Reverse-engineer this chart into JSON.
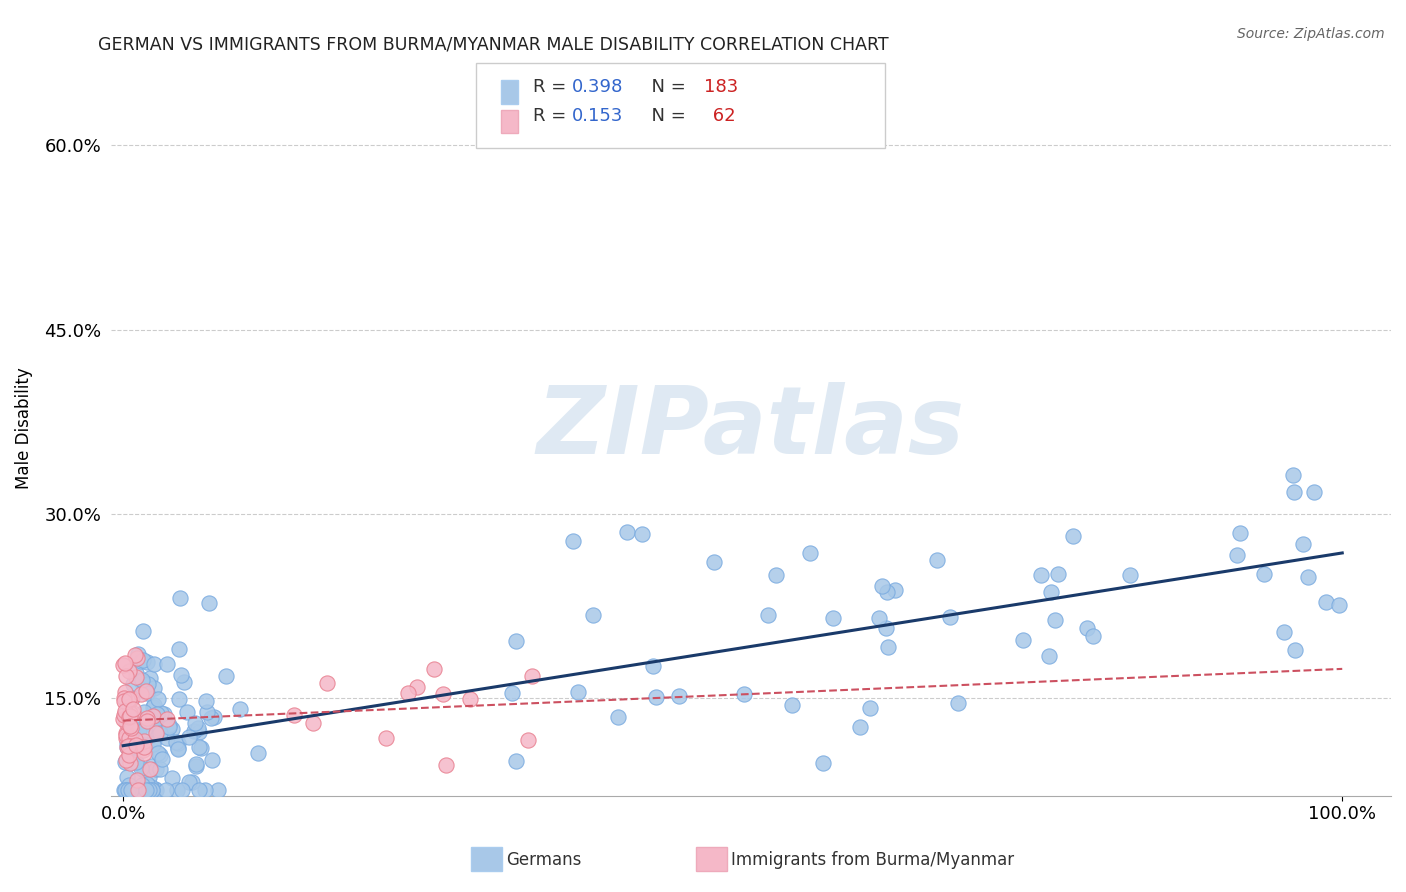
{
  "title": "GERMAN VS IMMIGRANTS FROM BURMA/MYANMAR MALE DISABILITY CORRELATION CHART",
  "source": "Source: ZipAtlas.com",
  "ylabel": "Male Disability",
  "ytick_labels": [
    "15.0%",
    "30.0%",
    "45.0%",
    "60.0%"
  ],
  "ytick_values": [
    0.15,
    0.3,
    0.45,
    0.6
  ],
  "xtick_labels": [
    "0.0%",
    "100.0%"
  ],
  "xtick_values": [
    0.0,
    1.0
  ],
  "xlim": [
    -0.01,
    1.04
  ],
  "ylim": [
    0.07,
    0.67
  ],
  "blue_scatter_color": "#a8c8e8",
  "blue_scatter_edge": "#7aabe0",
  "pink_scatter_color": "#f5b8c8",
  "pink_scatter_edge": "#e88090",
  "blue_line_color": "#1a3a6a",
  "pink_line_color": "#cc5060",
  "legend_blue_face": "#a8c8e8",
  "legend_pink_face": "#f5b8c8",
  "legend_R_blue_text": "0.398",
  "legend_N_blue_text": "183",
  "legend_R_pink_text": "0.153",
  "legend_N_pink_text": "62",
  "watermark_text": "ZIPatlas",
  "watermark_color": "#c5d8ea",
  "background_color": "#ffffff",
  "grid_color": "#cccccc",
  "bottom_legend_blue_label": "Germans",
  "bottom_legend_pink_label": "Immigrants from Burma/Myanmar",
  "blue_seed": 123,
  "pink_seed": 456
}
